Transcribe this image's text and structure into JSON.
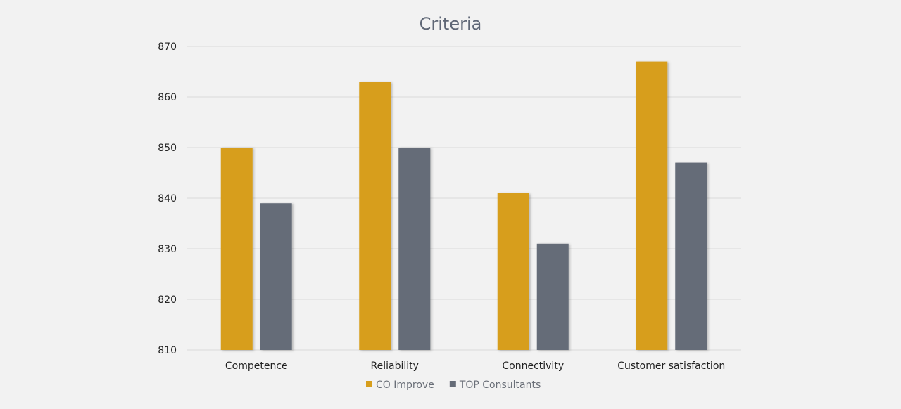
{
  "chart_data": {
    "type": "bar",
    "title": "Criteria",
    "categories": [
      "Competence",
      "Reliability",
      "Connectivity",
      "Customer satisfaction"
    ],
    "series": [
      {
        "name": "CO Improve",
        "color": "#d79e1c",
        "values": [
          850,
          863,
          841,
          867
        ]
      },
      {
        "name": "TOP Consultants",
        "color": "#656c78",
        "values": [
          839,
          850,
          831,
          847
        ]
      }
    ],
    "ylim": [
      810,
      870
    ],
    "yticks": [
      810,
      820,
      830,
      840,
      850,
      860,
      870
    ],
    "grid": true,
    "legend_position": "bottom"
  }
}
